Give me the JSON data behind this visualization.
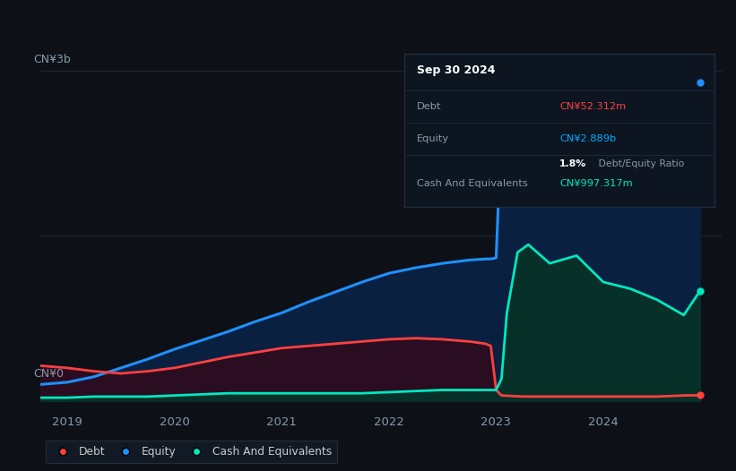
{
  "background_color": "#0d1117",
  "plot_bg_color": "#0d1117",
  "tooltip": {
    "date": "Sep 30 2024",
    "debt_label": "Debt",
    "debt_value": "CN¥52.312m",
    "debt_color": "#ff4040",
    "equity_label": "Equity",
    "equity_value": "CN¥2.889b",
    "equity_color": "#00aaff",
    "ratio_value": "1.8%",
    "ratio_label": " Debt/Equity Ratio",
    "cash_label": "Cash And Equivalents",
    "cash_value": "CN¥997.317m",
    "cash_color": "#00e8c0",
    "box_bg": "#0d1520",
    "label_color": "#8899aa",
    "title_color": "#ffffff"
  },
  "ylabel": "CN¥3b",
  "y0label": "CN¥0",
  "y_axis_color": "#8899aa",
  "grid_color": "#1a2535",
  "x_ticks": [
    2019,
    2020,
    2021,
    2022,
    2023,
    2024
  ],
  "x_min": 2018.75,
  "x_max": 2025.1,
  "y_min": -0.08,
  "y_max": 3.15,
  "equity": {
    "x": [
      2018.75,
      2019.0,
      2019.25,
      2019.5,
      2019.75,
      2020.0,
      2020.25,
      2020.5,
      2020.75,
      2021.0,
      2021.25,
      2021.5,
      2021.75,
      2022.0,
      2022.25,
      2022.5,
      2022.75,
      2022.9,
      2022.95,
      2023.0,
      2023.05,
      2023.1,
      2023.25,
      2023.5,
      2023.75,
      2024.0,
      2024.25,
      2024.5,
      2024.6,
      2024.75,
      2024.9
    ],
    "y": [
      0.15,
      0.17,
      0.22,
      0.3,
      0.38,
      0.47,
      0.55,
      0.63,
      0.72,
      0.8,
      0.9,
      0.99,
      1.08,
      1.16,
      1.21,
      1.25,
      1.28,
      1.29,
      1.29,
      1.3,
      2.52,
      2.58,
      2.62,
      2.65,
      2.68,
      2.72,
      2.68,
      2.6,
      2.65,
      2.72,
      2.89
    ],
    "color": "#1e90ff",
    "fill_alpha": 0.85,
    "linewidth": 2.2
  },
  "debt": {
    "x": [
      2018.75,
      2019.0,
      2019.25,
      2019.5,
      2019.75,
      2020.0,
      2020.25,
      2020.5,
      2020.75,
      2021.0,
      2021.25,
      2021.5,
      2021.75,
      2022.0,
      2022.25,
      2022.5,
      2022.75,
      2022.9,
      2022.95,
      2023.0,
      2023.05,
      2023.25,
      2023.5,
      2023.75,
      2024.0,
      2024.25,
      2024.5,
      2024.75,
      2024.9
    ],
    "y": [
      0.32,
      0.3,
      0.27,
      0.25,
      0.27,
      0.3,
      0.35,
      0.4,
      0.44,
      0.48,
      0.5,
      0.52,
      0.54,
      0.56,
      0.57,
      0.56,
      0.54,
      0.52,
      0.5,
      0.1,
      0.05,
      0.04,
      0.04,
      0.04,
      0.04,
      0.04,
      0.04,
      0.05,
      0.052
    ],
    "color": "#ff4040",
    "linewidth": 2.0
  },
  "cash": {
    "x": [
      2018.75,
      2019.0,
      2019.25,
      2019.5,
      2019.75,
      2020.0,
      2020.25,
      2020.5,
      2020.75,
      2021.0,
      2021.25,
      2021.5,
      2021.75,
      2022.0,
      2022.25,
      2022.5,
      2022.75,
      2022.9,
      2022.95,
      2023.0,
      2023.05,
      2023.1,
      2023.2,
      2023.3,
      2023.5,
      2023.75,
      2024.0,
      2024.25,
      2024.5,
      2024.75,
      2024.9
    ],
    "y": [
      0.03,
      0.03,
      0.04,
      0.04,
      0.04,
      0.05,
      0.06,
      0.07,
      0.07,
      0.07,
      0.07,
      0.07,
      0.07,
      0.08,
      0.09,
      0.1,
      0.1,
      0.1,
      0.1,
      0.1,
      0.2,
      0.8,
      1.35,
      1.42,
      1.25,
      1.32,
      1.08,
      1.02,
      0.92,
      0.78,
      0.997
    ],
    "color": "#00e8c0",
    "linewidth": 2.0
  },
  "legend": {
    "debt_label": "Debt",
    "equity_label": "Equity",
    "cash_label": "Cash And Equivalents",
    "text_color": "#cccccc",
    "bg_color": "#111c28",
    "border_color": "#2a3540"
  }
}
